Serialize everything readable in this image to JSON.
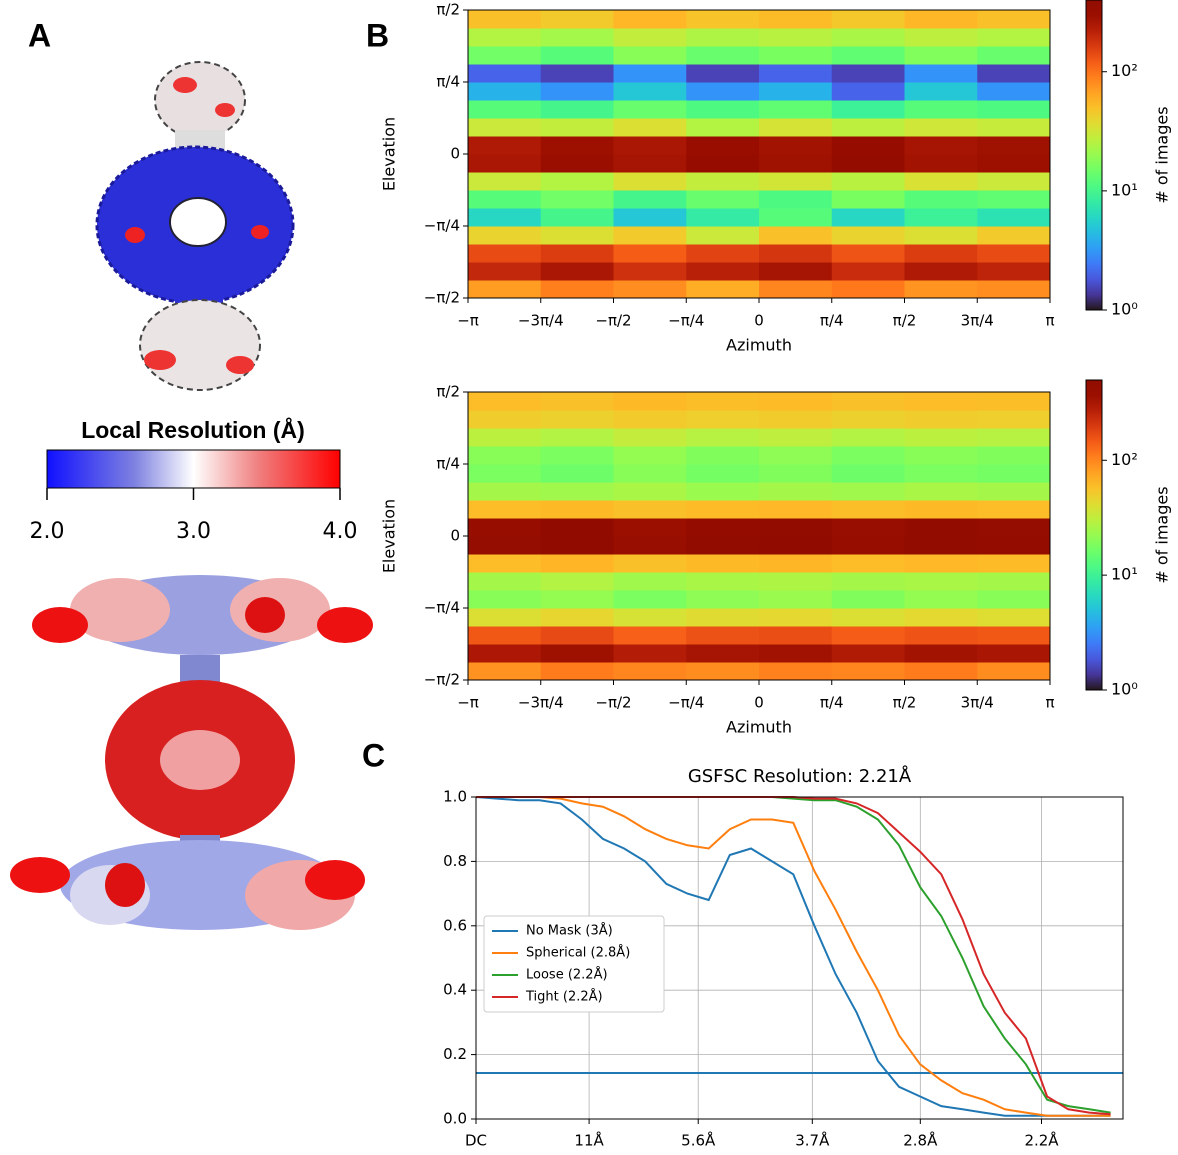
{
  "panel_labels": [
    "A",
    "B",
    "C"
  ],
  "local_resolution": {
    "title": "Local Resolution (Å)",
    "lim": [
      2,
      4
    ],
    "ticks": [
      {
        "value": 2,
        "label": "2.0"
      },
      {
        "value": 3,
        "label": "3.0"
      },
      {
        "value": 4,
        "label": "4.0"
      }
    ]
  },
  "chart_data": [
    {
      "type": "heatmap",
      "xlabel": "Azimuth",
      "ylabel": "Elevation",
      "xlim": [
        -3.1416,
        3.1416
      ],
      "ylim": [
        -1.5708,
        1.5708
      ],
      "xticks": [
        {
          "value": -3.1416,
          "label": "−π"
        },
        {
          "value": -2.3562,
          "label": "−3π/4"
        },
        {
          "value": -1.5708,
          "label": "−π/2"
        },
        {
          "value": -0.7854,
          "label": "−π/4"
        },
        0,
        {
          "value": 0.7854,
          "label": "π/4"
        },
        {
          "value": 1.5708,
          "label": "π/2"
        },
        {
          "value": 2.3562,
          "label": "3π/4"
        },
        {
          "value": 3.1416,
          "label": "π"
        }
      ],
      "yticks": [
        {
          "value": -1.5708,
          "label": "−π/2"
        },
        {
          "value": -0.7854,
          "label": "−π/4"
        },
        0,
        {
          "value": 0.7854,
          "label": "π/4"
        },
        {
          "value": 1.5708,
          "label": "π/2"
        }
      ],
      "xbins": [
        -3.1416,
        -2.3562,
        -1.5708,
        -0.7854,
        0,
        0.7854,
        1.5708,
        2.3562,
        3.1416
      ],
      "ybins": [
        -1.5708,
        -1.3744,
        -1.1781,
        -0.9817,
        -0.7854,
        -0.589,
        -0.3927,
        -0.1963,
        0,
        0.1963,
        0.3927,
        0.589,
        0.7854,
        0.9817,
        1.1781,
        1.3744,
        1.5708
      ],
      "values": [
        [
          70,
          90,
          80,
          60,
          85,
          95,
          75,
          80
        ],
        [
          200,
          250,
          180,
          220,
          260,
          190,
          240,
          210
        ],
        [
          140,
          160,
          120,
          150,
          170,
          130,
          160,
          140
        ],
        [
          40,
          35,
          45,
          30,
          50,
          40,
          35,
          45
        ],
        [
          6,
          10,
          5,
          8,
          12,
          6,
          9,
          7
        ],
        [
          12,
          15,
          10,
          14,
          11,
          16,
          12,
          13
        ],
        [
          30,
          25,
          35,
          28,
          32,
          26,
          34,
          30
        ],
        [
          250,
          300,
          260,
          320,
          280,
          330,
          270,
          290
        ],
        [
          240,
          290,
          250,
          310,
          270,
          320,
          260,
          280
        ],
        [
          30,
          28,
          35,
          25,
          33,
          27,
          31,
          29
        ],
        [
          12,
          10,
          14,
          11,
          13,
          9,
          12,
          11
        ],
        [
          4,
          3,
          5,
          3,
          4,
          2,
          5,
          3
        ],
        [
          2,
          1.5,
          3,
          1.5,
          2,
          1.5,
          3,
          1.5
        ],
        [
          15,
          12,
          18,
          14,
          16,
          13,
          17,
          14
        ],
        [
          25,
          22,
          28,
          24,
          26,
          23,
          27,
          25
        ],
        [
          50,
          45,
          55,
          48,
          52,
          46,
          54,
          50
        ]
      ],
      "colorbar": {
        "label": "# of images",
        "log": true,
        "lim": [
          1,
          400
        ],
        "ticks": [
          {
            "value": 1,
            "label": "10⁰"
          },
          {
            "value": 10,
            "label": "10¹"
          },
          {
            "value": 100,
            "label": "10²"
          }
        ]
      }
    },
    {
      "type": "heatmap",
      "xlabel": "Azimuth",
      "ylabel": "Elevation",
      "xlim": [
        -3.1416,
        3.1416
      ],
      "ylim": [
        -1.5708,
        1.5708
      ],
      "xticks": [
        {
          "value": -3.1416,
          "label": "−π"
        },
        {
          "value": -2.3562,
          "label": "−3π/4"
        },
        {
          "value": -1.5708,
          "label": "−π/2"
        },
        {
          "value": -0.7854,
          "label": "−π/4"
        },
        0,
        {
          "value": 0.7854,
          "label": "π/4"
        },
        {
          "value": 1.5708,
          "label": "π/2"
        },
        {
          "value": 2.3562,
          "label": "3π/4"
        },
        {
          "value": 3.1416,
          "label": "π"
        }
      ],
      "yticks": [
        {
          "value": -1.5708,
          "label": "−π/2"
        },
        {
          "value": -0.7854,
          "label": "−π/4"
        },
        0,
        {
          "value": 0.7854,
          "label": "π/4"
        },
        {
          "value": 1.5708,
          "label": "π/2"
        }
      ],
      "xbins": [
        -3.1416,
        -2.3562,
        -1.5708,
        -0.7854,
        0,
        0.7854,
        1.5708,
        2.3562,
        3.1416
      ],
      "ybins": [
        -1.5708,
        -1.3744,
        -1.1781,
        -0.9817,
        -0.7854,
        -0.589,
        -0.3927,
        -0.1963,
        0,
        0.1963,
        0.3927,
        0.589,
        0.7854,
        0.9817,
        1.1781,
        1.3744,
        1.5708
      ],
      "values": [
        [
          90,
          110,
          100,
          95,
          105,
          100,
          110,
          95
        ],
        [
          300,
          350,
          280,
          320,
          340,
          290,
          330,
          310
        ],
        [
          150,
          170,
          140,
          160,
          165,
          145,
          155,
          150
        ],
        [
          40,
          45,
          38,
          42,
          44,
          40,
          43,
          41
        ],
        [
          20,
          22,
          18,
          21,
          23,
          19,
          22,
          20
        ],
        [
          25,
          28,
          24,
          26,
          27,
          25,
          26,
          25
        ],
        [
          60,
          65,
          58,
          62,
          64,
          60,
          63,
          61
        ],
        [
          400,
          450,
          380,
          420,
          440,
          390,
          430,
          410
        ],
        [
          390,
          440,
          370,
          410,
          430,
          380,
          420,
          400
        ],
        [
          60,
          62,
          58,
          61,
          63,
          59,
          62,
          60
        ],
        [
          25,
          24,
          26,
          23,
          25,
          24,
          26,
          25
        ],
        [
          18,
          16,
          20,
          17,
          19,
          16,
          18,
          17
        ],
        [
          20,
          18,
          22,
          19,
          21,
          18,
          20,
          19
        ],
        [
          30,
          28,
          32,
          29,
          31,
          28,
          30,
          29
        ],
        [
          50,
          48,
          52,
          49,
          51,
          48,
          50,
          49
        ],
        [
          60,
          58,
          62,
          59,
          61,
          58,
          60,
          59
        ]
      ],
      "colorbar": {
        "label": "# of images",
        "log": true,
        "lim": [
          1,
          500
        ],
        "ticks": [
          {
            "value": 1,
            "label": "10⁰"
          },
          {
            "value": 10,
            "label": "10¹"
          },
          {
            "value": 100,
            "label": "10²"
          }
        ]
      }
    },
    {
      "type": "line",
      "title": "GSFSC Resolution: 2.21Å",
      "grid": true,
      "legend": "center left",
      "xlim": [
        0,
        0.52
      ],
      "ylim": [
        0,
        1
      ],
      "xticks": [
        {
          "value": 0,
          "label": "DC"
        },
        {
          "value": 0.0909,
          "label": "11Å"
        },
        {
          "value": 0.1786,
          "label": "5.6Å"
        },
        {
          "value": 0.2703,
          "label": "3.7Å"
        },
        {
          "value": 0.3571,
          "label": "2.8Å"
        },
        {
          "value": 0.4545,
          "label": "2.2Å"
        }
      ],
      "yticks": [
        {
          "value": 0,
          "label": "0.0"
        },
        {
          "value": 0.2,
          "label": "0.2"
        },
        {
          "value": 0.4,
          "label": "0.4"
        },
        {
          "value": 0.6,
          "label": "0.6"
        },
        {
          "value": 0.8,
          "label": "0.8"
        },
        {
          "value": 1,
          "label": "1.0"
        }
      ],
      "x": [
        0,
        0.017,
        0.034,
        0.051,
        0.068,
        0.085,
        0.102,
        0.119,
        0.136,
        0.153,
        0.17,
        0.187,
        0.204,
        0.221,
        0.238,
        0.255,
        0.272,
        0.289,
        0.306,
        0.323,
        0.34,
        0.357,
        0.374,
        0.391,
        0.408,
        0.425,
        0.442,
        0.459,
        0.476,
        0.493,
        0.51
      ],
      "series": [
        {
          "name": "No Mask (3Å)",
          "color": "#1f77b4",
          "values": [
            1,
            0.995,
            0.99,
            0.99,
            0.98,
            0.93,
            0.87,
            0.84,
            0.8,
            0.73,
            0.7,
            0.68,
            0.82,
            0.84,
            0.8,
            0.76,
            0.6,
            0.45,
            0.33,
            0.18,
            0.1,
            0.07,
            0.04,
            0.03,
            0.02,
            0.01,
            0.01,
            0.01,
            0.01,
            0.01,
            0.01
          ]
        },
        {
          "name": "Spherical (2.8Å)",
          "color": "#ff7f0e",
          "values": [
            1,
            1,
            1,
            1,
            0.995,
            0.98,
            0.97,
            0.94,
            0.9,
            0.87,
            0.85,
            0.84,
            0.9,
            0.93,
            0.93,
            0.92,
            0.77,
            0.65,
            0.52,
            0.4,
            0.26,
            0.17,
            0.12,
            0.08,
            0.06,
            0.03,
            0.02,
            0.01,
            0.01,
            0.01,
            0.01
          ]
        },
        {
          "name": "Loose (2.2Å)",
          "color": "#2ca02c",
          "values": [
            1,
            1,
            1,
            1,
            1,
            1,
            1,
            1,
            1,
            1,
            1,
            1,
            1,
            1,
            1,
            0.995,
            0.99,
            0.99,
            0.97,
            0.93,
            0.85,
            0.72,
            0.63,
            0.5,
            0.35,
            0.25,
            0.17,
            0.06,
            0.04,
            0.03,
            0.02
          ]
        },
        {
          "name": "Tight (2.2Å)",
          "color": "#d62728",
          "values": [
            1,
            1,
            1,
            1,
            1,
            1,
            1,
            1,
            1,
            1,
            1,
            1,
            1,
            1,
            1,
            1,
            0.995,
            0.995,
            0.98,
            0.95,
            0.89,
            0.83,
            0.76,
            0.62,
            0.45,
            0.33,
            0.25,
            0.07,
            0.03,
            0.02,
            0.015
          ]
        }
      ],
      "hlines": [
        {
          "value": 0.143,
          "color": "#1f77b4"
        }
      ]
    }
  ]
}
